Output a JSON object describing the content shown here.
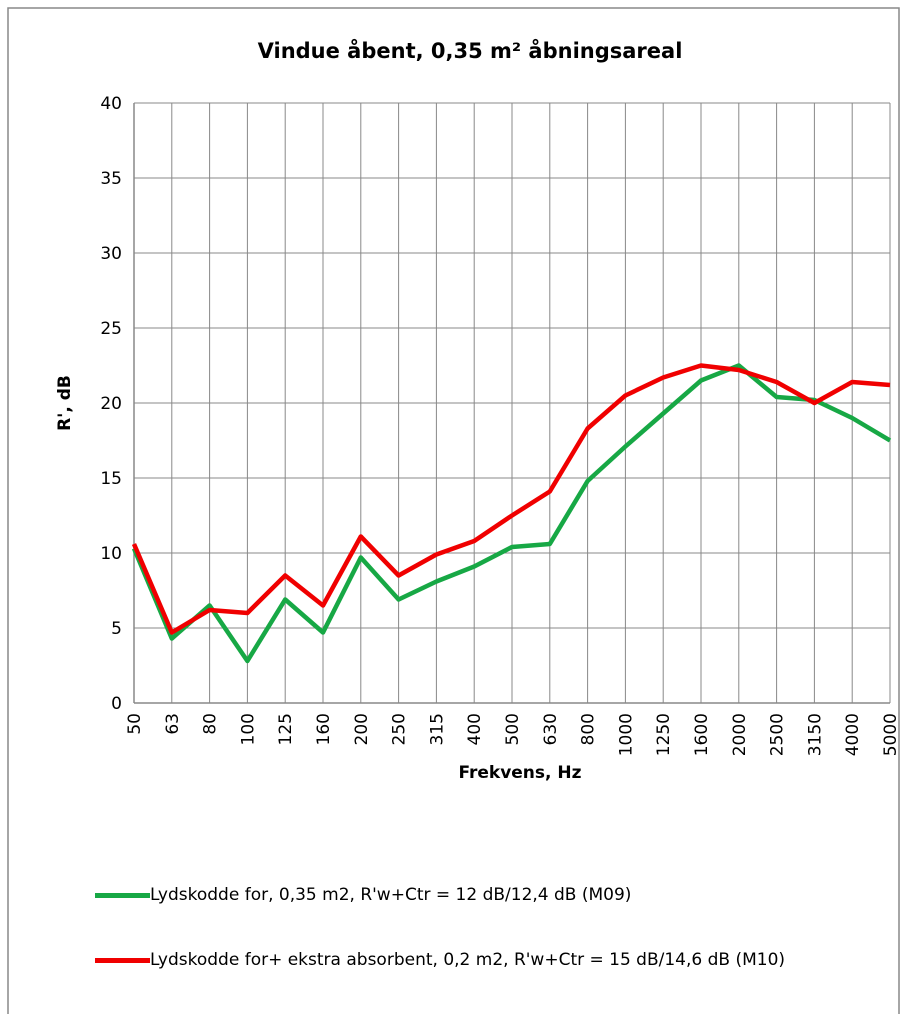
{
  "chart_data": {
    "type": "line",
    "title": "Vindue åbent, 0,35 m² åbningsareal",
    "x_label": "Frekvens, Hz",
    "y_label": "R', dB",
    "categories": [
      "50",
      "63",
      "80",
      "100",
      "125",
      "160",
      "200",
      "250",
      "315",
      "400",
      "500",
      "630",
      "800",
      "1000",
      "1250",
      "1600",
      "2000",
      "2500",
      "3150",
      "4000",
      "5000"
    ],
    "series": [
      {
        "name": "Lydskodde for, 0,35 m2, R'w+Ctr = 12 dB/12,4 dB (M09)",
        "color": "#17a845",
        "values": [
          10.3,
          4.3,
          6.5,
          2.8,
          6.9,
          4.7,
          9.7,
          6.9,
          8.1,
          9.1,
          10.4,
          10.6,
          14.8,
          17.1,
          19.3,
          21.5,
          22.5,
          20.4,
          20.2,
          19.0,
          17.5
        ]
      },
      {
        "name": "Lydskodde for+ ekstra absorbent, 0,2 m2, R'w+Ctr = 15 dB/14,6 dB (M10)",
        "color": "#f00000",
        "values": [
          10.6,
          4.7,
          6.2,
          6.0,
          8.5,
          6.5,
          11.1,
          8.5,
          9.9,
          10.8,
          12.5,
          14.1,
          18.3,
          20.5,
          21.7,
          22.5,
          22.2,
          21.4,
          20.0,
          21.4,
          21.2
        ]
      }
    ],
    "ylim": [
      0,
      40
    ],
    "yticks": [
      0,
      5,
      10,
      15,
      20,
      25,
      30,
      35,
      40
    ],
    "grid": true
  }
}
